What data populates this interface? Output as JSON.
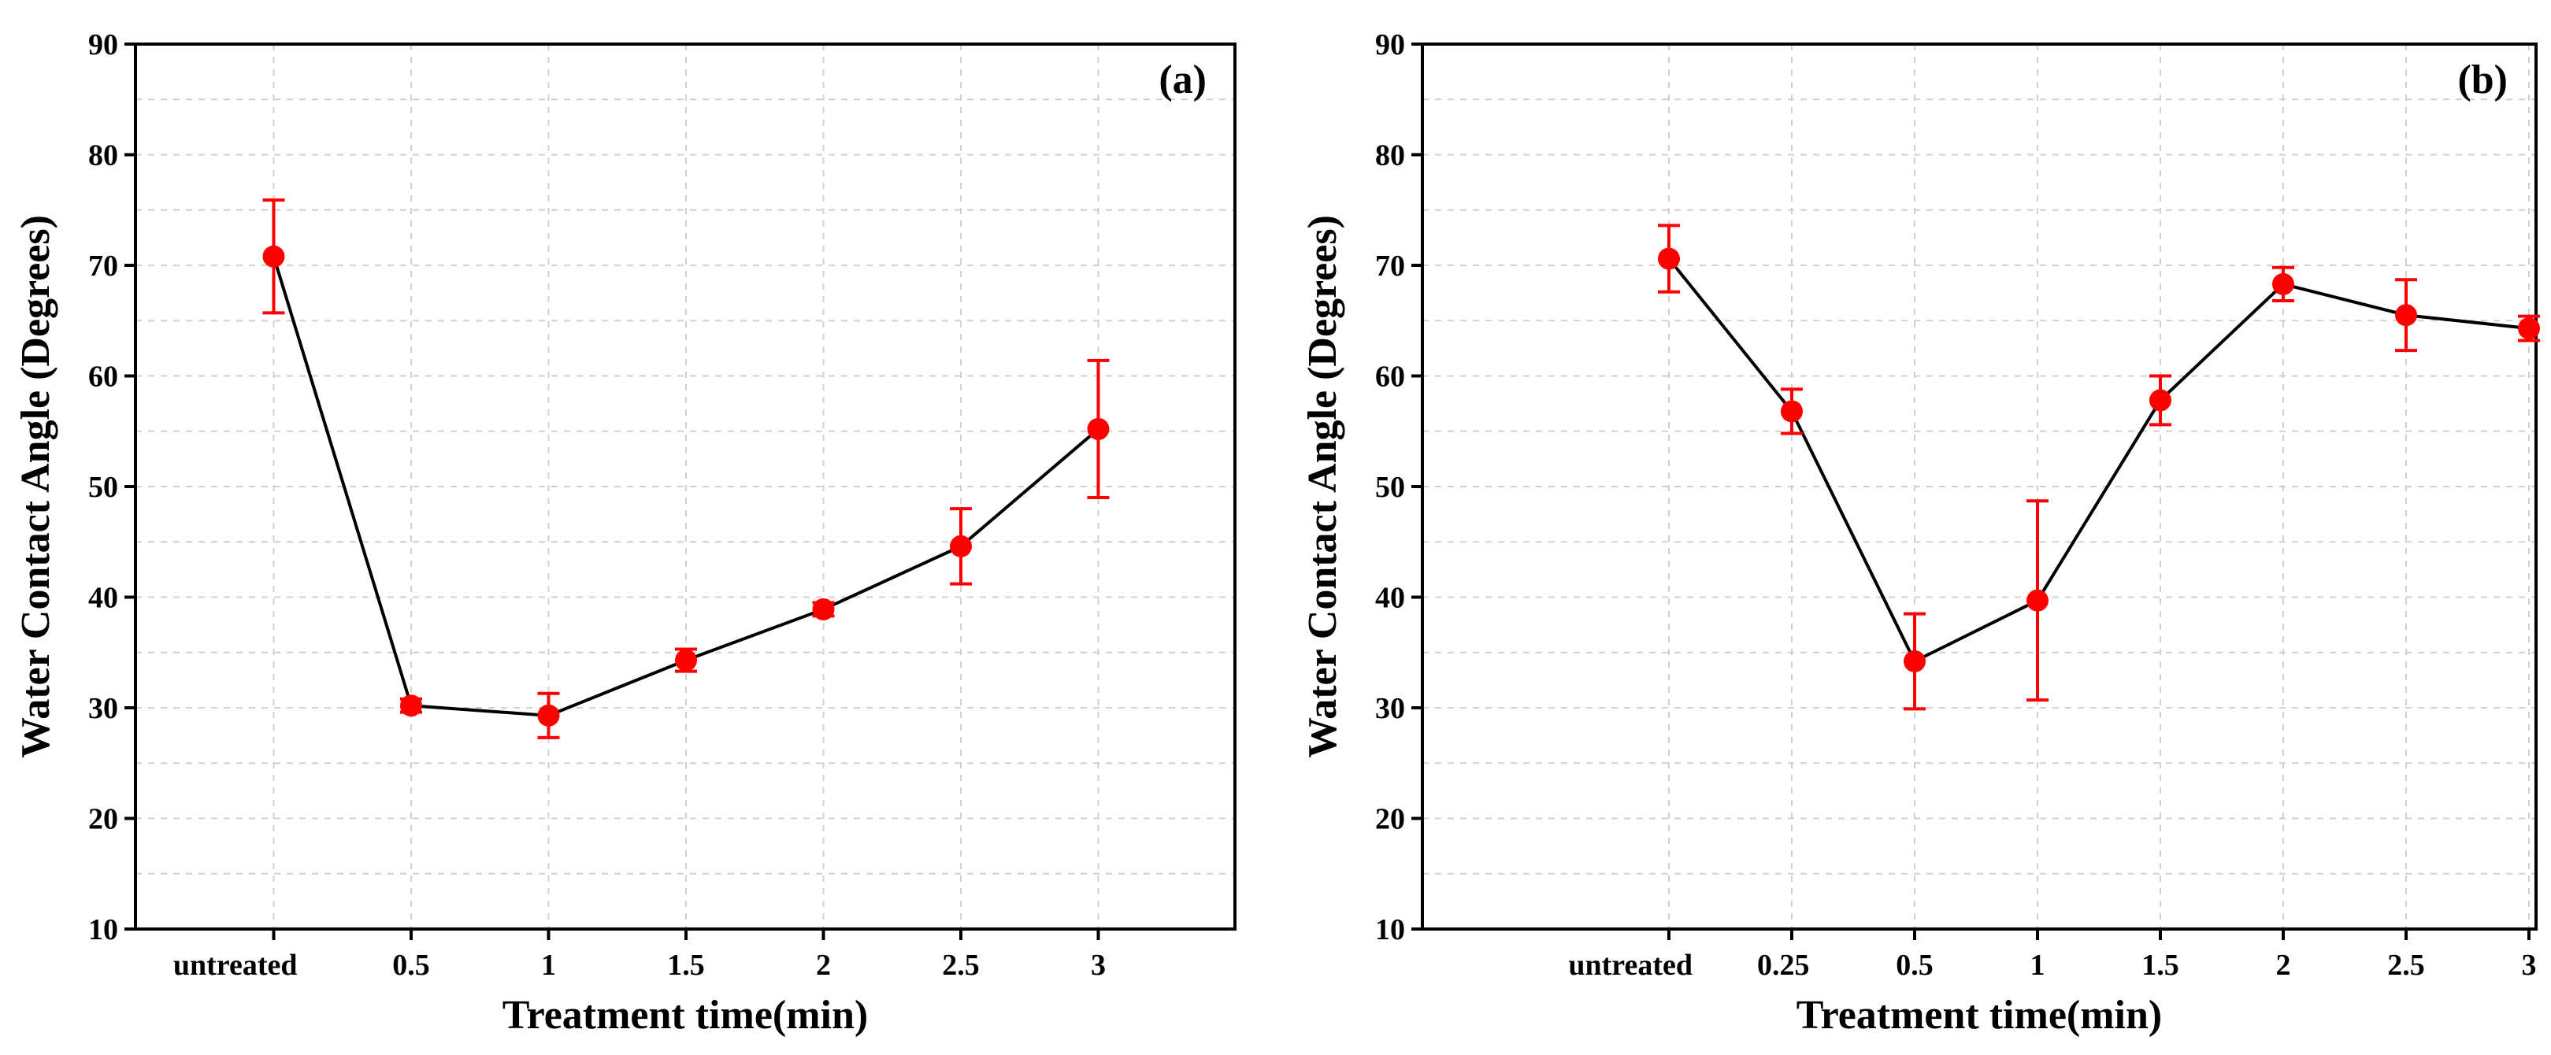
{
  "chart_data": [
    {
      "type": "line",
      "panel_label": "(a)",
      "xlabel": "Treatment time(min)",
      "ylabel": "Water Contact Angle (Degrees)",
      "categories": [
        "untreated",
        "0.5",
        "1",
        "1.5",
        "2",
        "2.5",
        "3"
      ],
      "series": [
        {
          "values": [
            70.8,
            30.2,
            29.3,
            34.3,
            38.9,
            44.6,
            55.2
          ],
          "errors": [
            5.1,
            0.6,
            2.0,
            1.0,
            0.6,
            3.4,
            6.2
          ]
        }
      ],
      "ylim": [
        10,
        90
      ],
      "yticks": [
        10,
        20,
        30,
        40,
        50,
        60,
        70,
        80,
        90
      ],
      "grid": true
    },
    {
      "type": "line",
      "panel_label": "(b)",
      "xlabel": "Treatment time(min)",
      "ylabel": "Water Contact Angle (Degrees)",
      "categories": [
        "untreated",
        "0.25",
        "0.5",
        "1",
        "1.5",
        "2",
        "2.5",
        "3"
      ],
      "series": [
        {
          "values": [
            70.6,
            56.8,
            34.2,
            39.7,
            57.8,
            68.3,
            65.5,
            64.3
          ],
          "errors": [
            3.0,
            2.0,
            4.3,
            9.0,
            2.2,
            1.5,
            3.2,
            1.1
          ]
        }
      ],
      "ylim": [
        10,
        90
      ],
      "yticks": [
        10,
        20,
        30,
        40,
        50,
        60,
        70,
        80,
        90
      ],
      "grid": true
    }
  ],
  "colors": {
    "series_line": "#000000",
    "marker": "#ff0000",
    "grid": "#d0d0d0",
    "axis": "#000000"
  }
}
